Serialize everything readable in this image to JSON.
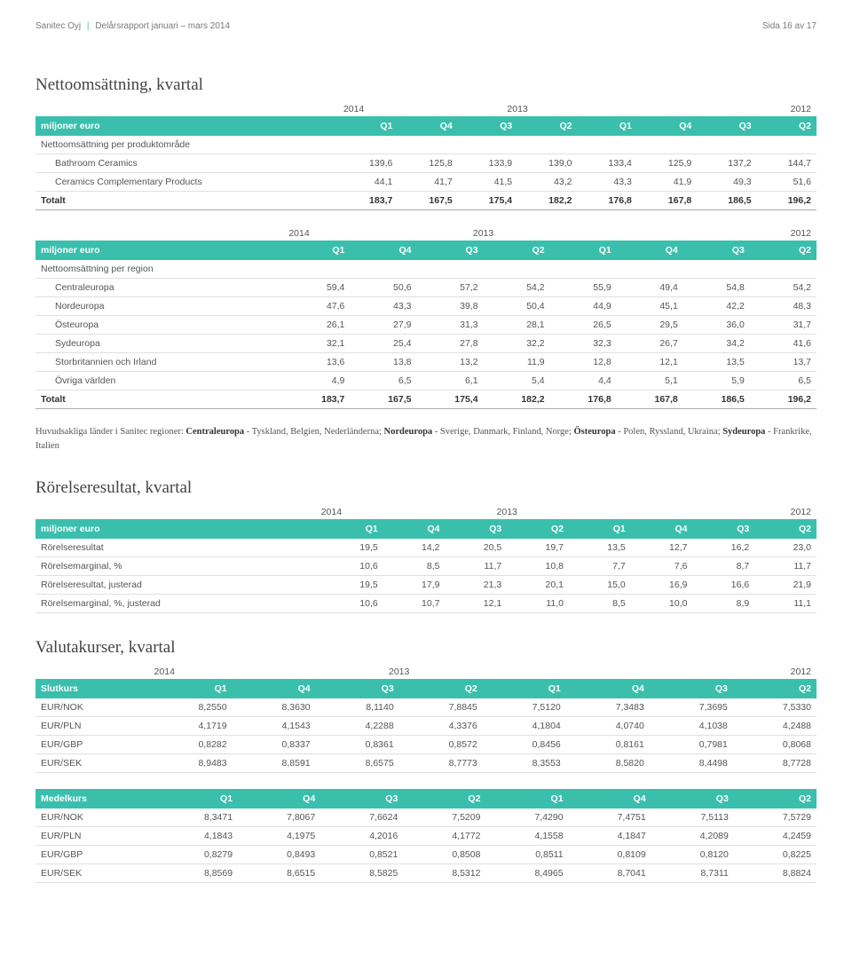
{
  "header": {
    "company": "Sanitec Oyj",
    "report": "Delårsrapport januari – mars 2014",
    "page": "Sida 16 av 17"
  },
  "year_labels": {
    "y2014": "2014",
    "y2013": "2013",
    "y2012": "2012"
  },
  "cols_euro": [
    "miljoner euro",
    "Q1",
    "Q4",
    "Q3",
    "Q2",
    "Q1",
    "Q4",
    "Q3",
    "Q2"
  ],
  "t1": {
    "title": "Nettoomsättning, kvartal",
    "section": "Nettoomsättning per produktområde",
    "rows": [
      [
        "Bathroom Ceramics",
        "139,6",
        "125,8",
        "133,9",
        "139,0",
        "133,4",
        "125,9",
        "137,2",
        "144,7"
      ],
      [
        "Ceramics Complementary Products",
        "44,1",
        "41,7",
        "41,5",
        "43,2",
        "43,3",
        "41,9",
        "49,3",
        "51,6"
      ]
    ],
    "total": [
      "Totalt",
      "183,7",
      "167,5",
      "175,4",
      "182,2",
      "176,8",
      "167,8",
      "186,5",
      "196,2"
    ]
  },
  "t2": {
    "section": "Nettoomsättning per region",
    "rows": [
      [
        "Centraleuropa",
        "59,4",
        "50,6",
        "57,2",
        "54,2",
        "55,9",
        "49,4",
        "54,8",
        "54,2"
      ],
      [
        "Nordeuropa",
        "47,6",
        "43,3",
        "39,8",
        "50,4",
        "44,9",
        "45,1",
        "42,2",
        "48,3"
      ],
      [
        "Östeuropa",
        "26,1",
        "27,9",
        "31,3",
        "28,1",
        "26,5",
        "29,5",
        "36,0",
        "31,7"
      ],
      [
        "Sydeuropa",
        "32,1",
        "25,4",
        "27,8",
        "32,2",
        "32,3",
        "26,7",
        "34,2",
        "41,6"
      ],
      [
        "Storbritannien och Irland",
        "13,6",
        "13,8",
        "13,2",
        "11,9",
        "12,8",
        "12,1",
        "13,5",
        "13,7"
      ],
      [
        "Övriga världen",
        "4,9",
        "6,5",
        "6,1",
        "5,4",
        "4,4",
        "5,1",
        "5,9",
        "6,5"
      ]
    ],
    "total": [
      "Totalt",
      "183,7",
      "167,5",
      "175,4",
      "182,2",
      "176,8",
      "167,8",
      "186,5",
      "196,2"
    ]
  },
  "note": {
    "pre": "Huvudsakliga länder i Sanitec regioner: ",
    "b1": "Centraleuropa",
    "t1": " - Tyskland, Belgien, Nederländerna; ",
    "b2": "Nordeuropa",
    "t2": " - Sverige, Danmark, Finland, Norge; ",
    "b3": "Östeuropa",
    "t3": " - Polen, Ryssland, Ukraina; ",
    "b4": "Sydeuropa",
    "t4": " - Frankrike, Italien"
  },
  "t3": {
    "title": "Rörelseresultat, kvartal",
    "rows": [
      [
        "Rörelseresultat",
        "19,5",
        "14,2",
        "20,5",
        "19,7",
        "13,5",
        "12,7",
        "16,2",
        "23,0"
      ],
      [
        "Rörelsemarginal, %",
        "10,6",
        "8,5",
        "11,7",
        "10,8",
        "7,7",
        "7,6",
        "8,7",
        "11,7"
      ],
      [
        "Rörelseresultat, justerad",
        "19,5",
        "17,9",
        "21,3",
        "20,1",
        "15,0",
        "16,9",
        "16,6",
        "21,9"
      ],
      [
        "Rörelsemarginal, %, justerad",
        "10,6",
        "10,7",
        "12,1",
        "11,0",
        "8,5",
        "10,0",
        "8,9",
        "11,1"
      ]
    ]
  },
  "t4": {
    "title": "Valutakurser, kvartal",
    "cols_a": [
      "Slutkurs",
      "Q1",
      "Q4",
      "Q3",
      "Q2",
      "Q1",
      "Q4",
      "Q3",
      "Q2"
    ],
    "rows_a": [
      [
        "EUR/NOK",
        "8,2550",
        "8,3630",
        "8,1140",
        "7,8845",
        "7,5120",
        "7,3483",
        "7,3695",
        "7,5330"
      ],
      [
        "EUR/PLN",
        "4,1719",
        "4,1543",
        "4,2288",
        "4,3376",
        "4,1804",
        "4,0740",
        "4,1038",
        "4,2488"
      ],
      [
        "EUR/GBP",
        "0,8282",
        "0,8337",
        "0,8361",
        "0,8572",
        "0,8456",
        "0,8161",
        "0,7981",
        "0,8068"
      ],
      [
        "EUR/SEK",
        "8,9483",
        "8,8591",
        "8,6575",
        "8,7773",
        "8,3553",
        "8,5820",
        "8,4498",
        "8,7728"
      ]
    ],
    "cols_b": [
      "Medelkurs",
      "Q1",
      "Q4",
      "Q3",
      "Q2",
      "Q1",
      "Q4",
      "Q3",
      "Q2"
    ],
    "rows_b": [
      [
        "EUR/NOK",
        "8,3471",
        "7,8067",
        "7,6624",
        "7,5209",
        "7,4290",
        "7,4751",
        "7,5113",
        "7,5729"
      ],
      [
        "EUR/PLN",
        "4,1843",
        "4,1975",
        "4,2016",
        "4,1772",
        "4,1558",
        "4,1847",
        "4,2089",
        "4,2459"
      ],
      [
        "EUR/GBP",
        "0,8279",
        "0,8493",
        "0,8521",
        "0,8508",
        "0,8511",
        "0,8109",
        "0,8120",
        "0,8225"
      ],
      [
        "EUR/SEK",
        "8,8569",
        "8,6515",
        "8,5825",
        "8,5312",
        "8,4965",
        "8,7041",
        "8,7311",
        "8,8824"
      ]
    ]
  }
}
